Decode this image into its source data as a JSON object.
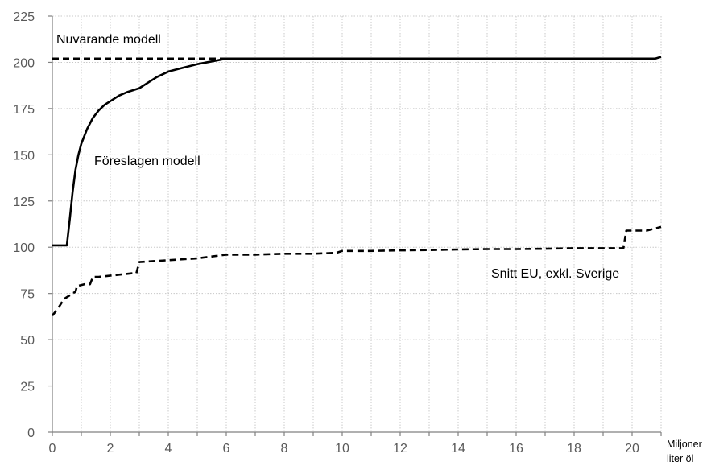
{
  "chart_data": {
    "type": "line",
    "title": "",
    "xlabel": "",
    "ylabel": "",
    "x_unit_label": [
      "Miljoner",
      "liter öl"
    ],
    "xlim": [
      0,
      21
    ],
    "ylim": [
      0,
      225
    ],
    "x_ticks": [
      0,
      2,
      4,
      6,
      8,
      10,
      12,
      14,
      16,
      18,
      20
    ],
    "x_tick_labels": [
      "0",
      "2",
      "4",
      "6",
      "8",
      "10",
      "12",
      "14",
      "16",
      "18",
      "20"
    ],
    "y_ticks": [
      0,
      25,
      50,
      75,
      100,
      125,
      150,
      175,
      200,
      225
    ],
    "y_tick_labels": [
      "0",
      "25",
      "50",
      "75",
      "100",
      "125",
      "150",
      "175",
      "200",
      "225"
    ],
    "grid": true,
    "legend": "none",
    "annotations": [
      {
        "text": "Nuvarande modell",
        "series": "nuvarande"
      },
      {
        "text": "Föreslagen modell",
        "series": "foreslagen"
      },
      {
        "text": "Snitt EU, exkl. Sverige",
        "series": "snitt"
      }
    ],
    "series": [
      {
        "id": "nuvarande",
        "style": "dashed",
        "color": "#000000",
        "points": [
          [
            0,
            202
          ],
          [
            6,
            202
          ]
        ]
      },
      {
        "id": "foreslagen",
        "style": "solid",
        "color": "#000000",
        "points": [
          [
            0,
            101
          ],
          [
            0.5,
            101
          ],
          [
            0.6,
            115
          ],
          [
            0.7,
            130
          ],
          [
            0.8,
            142
          ],
          [
            0.9,
            150
          ],
          [
            1.0,
            156
          ],
          [
            1.2,
            164
          ],
          [
            1.4,
            170
          ],
          [
            1.6,
            174
          ],
          [
            1.8,
            177
          ],
          [
            2.0,
            179
          ],
          [
            2.3,
            182
          ],
          [
            2.6,
            184
          ],
          [
            3.0,
            186
          ],
          [
            3.3,
            189
          ],
          [
            3.6,
            192
          ],
          [
            4.0,
            195
          ],
          [
            4.5,
            197
          ],
          [
            5.0,
            199
          ],
          [
            5.5,
            200.5
          ],
          [
            6.0,
            202
          ],
          [
            20.8,
            202
          ],
          [
            21,
            203
          ]
        ]
      },
      {
        "id": "snitt",
        "style": "dashed",
        "color": "#000000",
        "points": [
          [
            0,
            63
          ],
          [
            0.2,
            67
          ],
          [
            0.4,
            72
          ],
          [
            0.6,
            74
          ],
          [
            0.8,
            76
          ],
          [
            0.85,
            79
          ],
          [
            1.1,
            80
          ],
          [
            1.3,
            80
          ],
          [
            1.4,
            84
          ],
          [
            1.6,
            84
          ],
          [
            2.8,
            86
          ],
          [
            2.9,
            86
          ],
          [
            3.0,
            92
          ],
          [
            4.0,
            93
          ],
          [
            5.0,
            94
          ],
          [
            5.5,
            95
          ],
          [
            6.0,
            96
          ],
          [
            7.0,
            96
          ],
          [
            8.0,
            96.5
          ],
          [
            9.0,
            96.5
          ],
          [
            9.8,
            97
          ],
          [
            10.0,
            98
          ],
          [
            11.0,
            98
          ],
          [
            12.0,
            98.3
          ],
          [
            13.0,
            98.5
          ],
          [
            14.0,
            98.8
          ],
          [
            15.0,
            99
          ],
          [
            16.0,
            99
          ],
          [
            17.0,
            99.2
          ],
          [
            18.0,
            99.5
          ],
          [
            19.0,
            99.5
          ],
          [
            19.7,
            99.5
          ],
          [
            19.8,
            109
          ],
          [
            20.5,
            109
          ],
          [
            21,
            111
          ]
        ]
      }
    ]
  }
}
